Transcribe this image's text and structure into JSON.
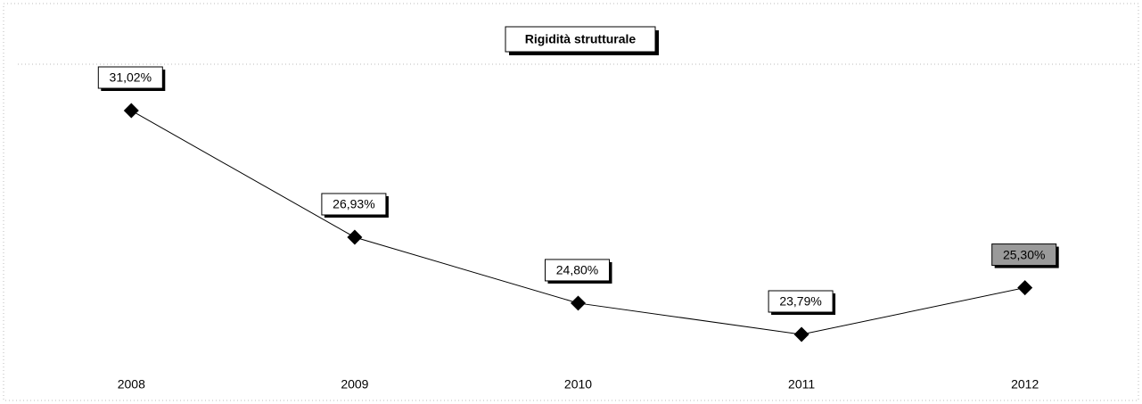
{
  "chart_data": {
    "type": "line",
    "title": "Rigidità strutturale",
    "categories": [
      "2008",
      "2009",
      "2010",
      "2011",
      "2012"
    ],
    "values": [
      31.02,
      26.93,
      24.8,
      23.79,
      25.3
    ],
    "value_labels": [
      "31,02%",
      "26,93%",
      "24,80%",
      "23,79%",
      "25,30%"
    ],
    "color": "#000000"
  }
}
